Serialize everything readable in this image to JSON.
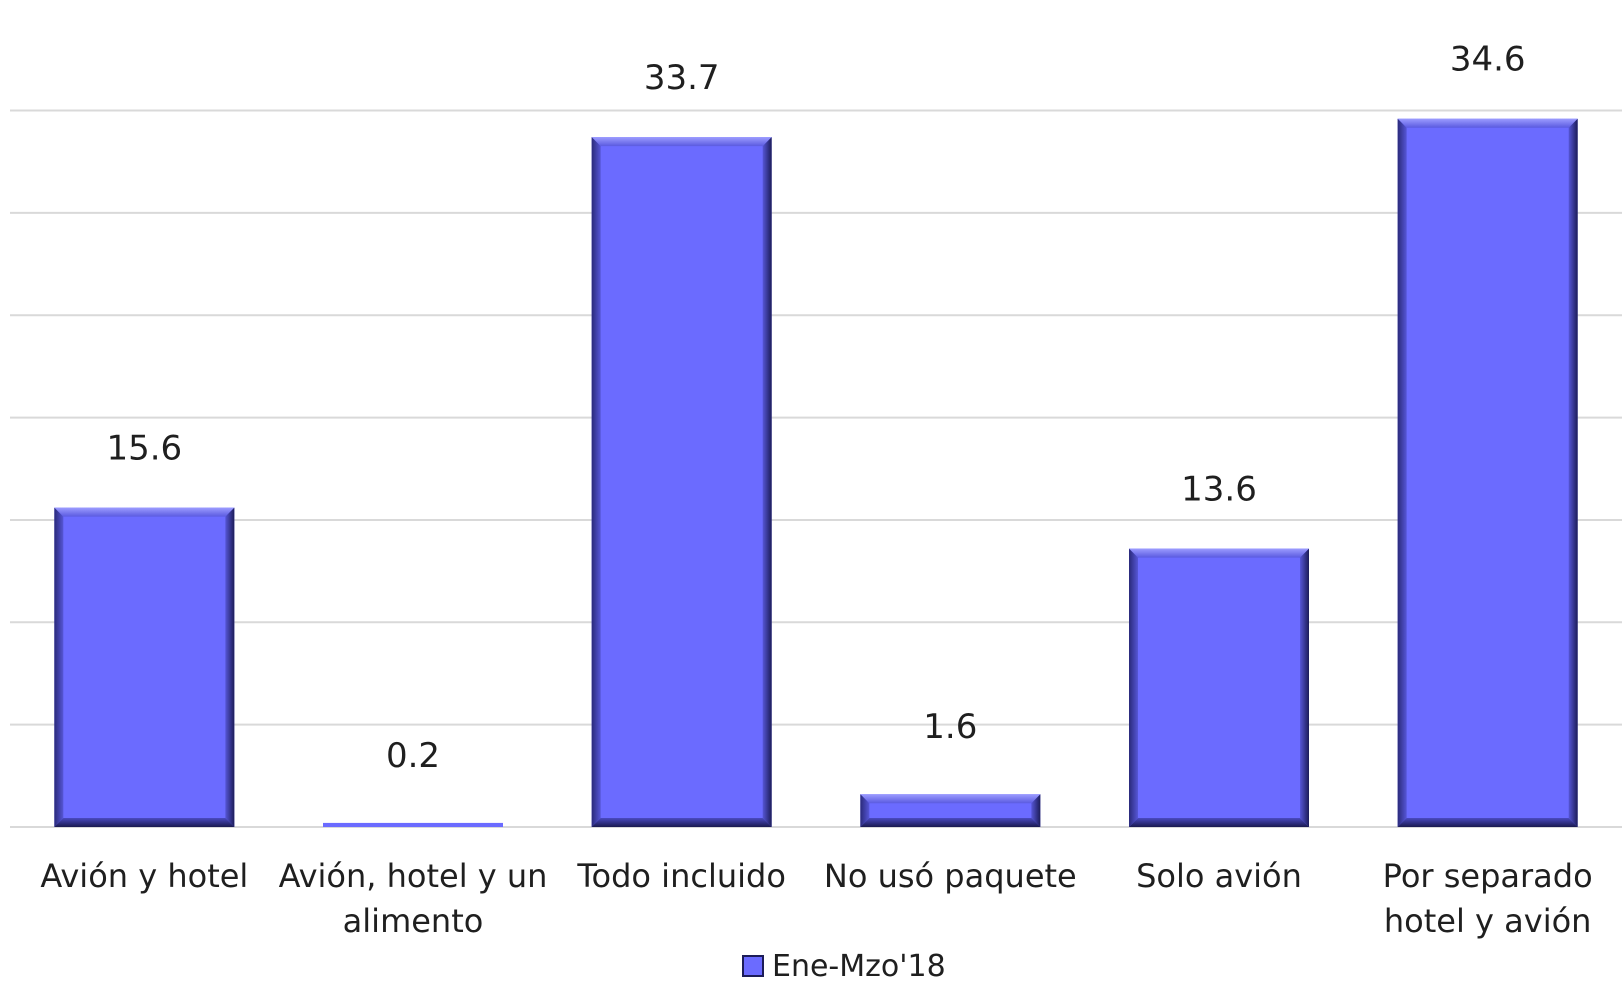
{
  "chart_data": {
    "type": "bar",
    "categories": [
      [
        "Avión y hotel"
      ],
      [
        "Avión, hotel y un",
        "alimento"
      ],
      [
        "Todo incluido"
      ],
      [
        "No usó paquete"
      ],
      [
        "Solo avión"
      ],
      [
        "Por separado",
        "hotel y avión"
      ]
    ],
    "series": [
      {
        "name": "Ene-Mzo'18",
        "values": [
          15.6,
          0.2,
          33.7,
          1.6,
          13.6,
          34.6
        ],
        "color": "#6b6bff"
      }
    ],
    "value_labels": [
      "15.6",
      "0.2",
      "33.7",
      "1.6",
      "13.6",
      "34.6"
    ],
    "ylim": [
      0,
      35
    ],
    "y_grid_step": 5,
    "grid": true,
    "y_axis_labels_visible": false,
    "legend_position": "bottom-center"
  }
}
